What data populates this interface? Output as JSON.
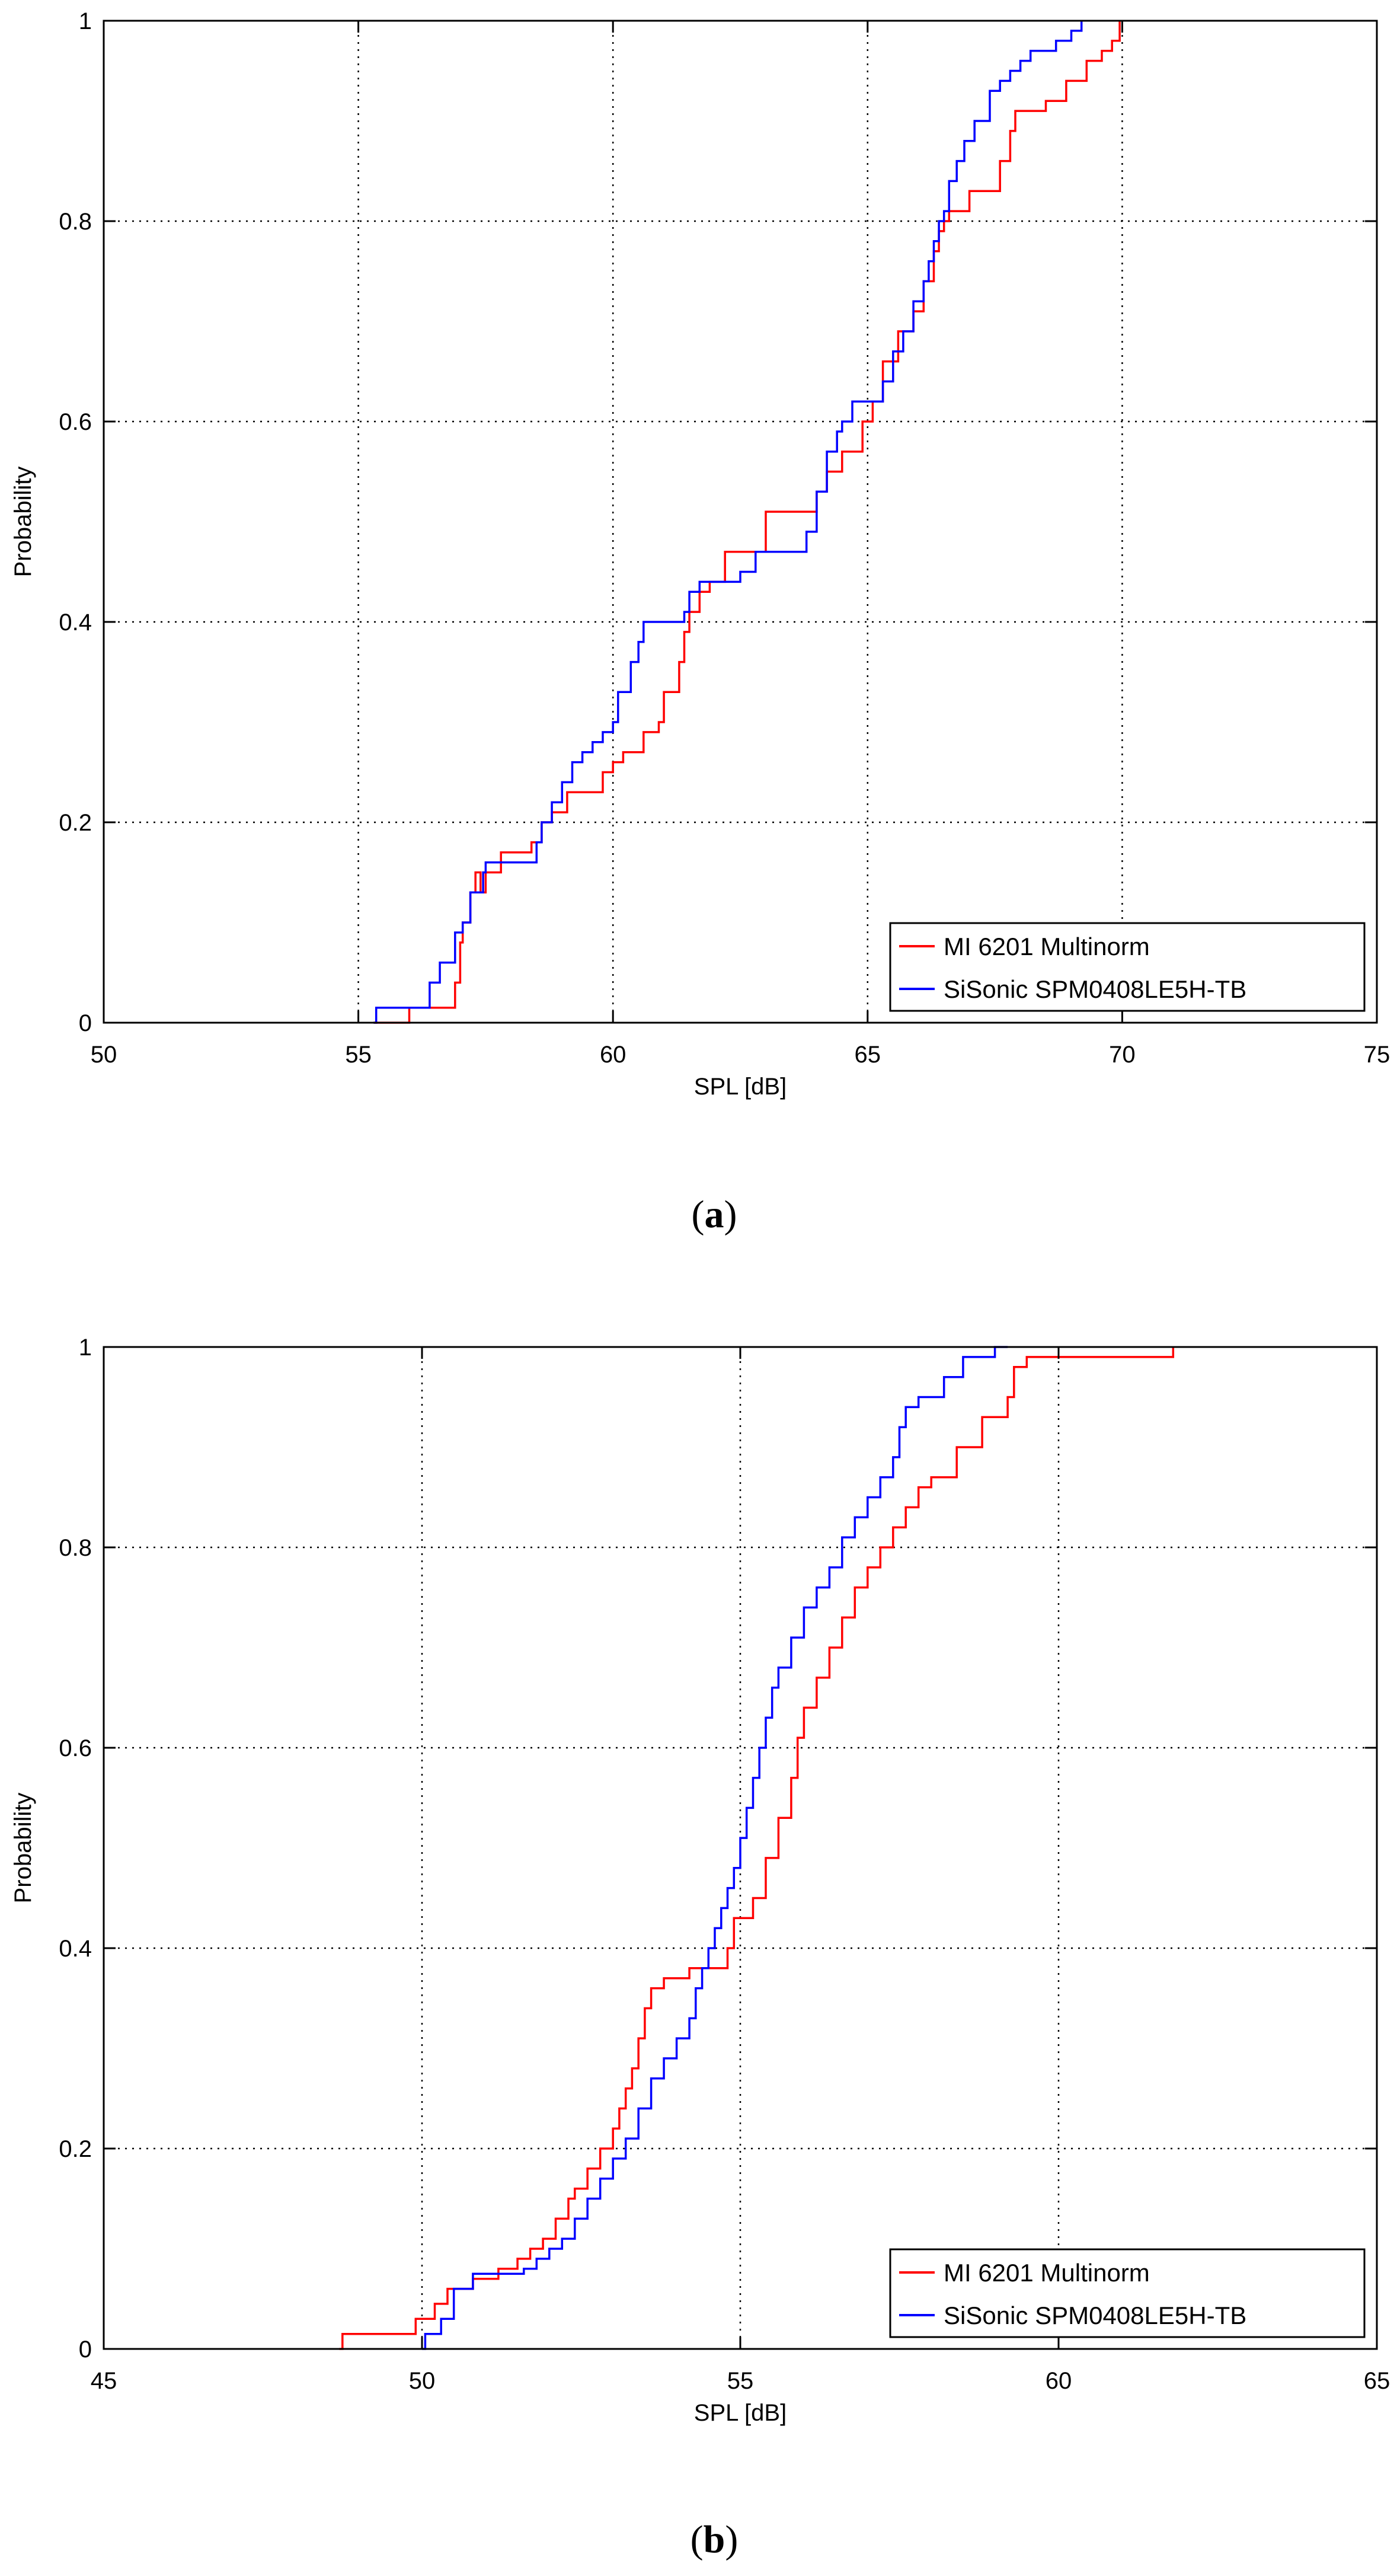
{
  "chart_data": [
    {
      "type": "line",
      "step": true,
      "panel_label": "a",
      "xlabel": "SPL [dB]",
      "ylabel": "Probability",
      "xlim": [
        50,
        75
      ],
      "ylim": [
        0,
        1
      ],
      "xticks": [
        50,
        55,
        60,
        65,
        70,
        75
      ],
      "yticks": [
        0,
        0.2,
        0.4,
        0.6,
        0.8,
        1
      ],
      "grid": true,
      "legend_position": "bottom-right",
      "series": [
        {
          "name": "MI 6201 Multinorm",
          "color": "#ff0000",
          "x": [
            55.3,
            56.0,
            56.0,
            56.9,
            56.9,
            57.0,
            57.05,
            57.2,
            57.25,
            57.3,
            57.4,
            57.5,
            57.6,
            57.8,
            58.0,
            58.4,
            58.6,
            58.7,
            58.8,
            59.1,
            59.6,
            59.8,
            60.0,
            60.2,
            60.6,
            60.9,
            61.0,
            61.3,
            61.4,
            61.5,
            61.7,
            61.9,
            62.2,
            62.5,
            63.0,
            63.8,
            64.0,
            64.2,
            64.5,
            64.9,
            65.1,
            65.3,
            65.6,
            65.9,
            66.1,
            66.3,
            66.4,
            66.5,
            66.6,
            66.8,
            67.0,
            67.3,
            67.6,
            67.8,
            67.9,
            68.0,
            68.5,
            68.9,
            69.3,
            69.6,
            69.8,
            69.95
          ],
          "y": [
            0.0,
            0.0,
            0.015,
            0.015,
            0.04,
            0.08,
            0.1,
            0.13,
            0.13,
            0.15,
            0.13,
            0.15,
            0.15,
            0.17,
            0.17,
            0.18,
            0.2,
            0.2,
            0.21,
            0.23,
            0.23,
            0.25,
            0.26,
            0.27,
            0.29,
            0.3,
            0.33,
            0.36,
            0.39,
            0.41,
            0.43,
            0.44,
            0.47,
            0.47,
            0.51,
            0.51,
            0.53,
            0.55,
            0.57,
            0.6,
            0.62,
            0.66,
            0.69,
            0.71,
            0.74,
            0.77,
            0.79,
            0.8,
            0.81,
            0.81,
            0.83,
            0.83,
            0.86,
            0.89,
            0.91,
            0.91,
            0.92,
            0.94,
            0.96,
            0.97,
            0.98,
            1.0
          ]
        },
        {
          "name": "SiSonic SPM0408LE5H-TB",
          "color": "#0000ff",
          "x": [
            55.3,
            55.35,
            56.35,
            56.4,
            56.6,
            56.9,
            57.05,
            57.2,
            57.35,
            57.45,
            57.5,
            58.3,
            58.5,
            58.6,
            58.8,
            59.0,
            59.2,
            59.4,
            59.6,
            59.8,
            60.0,
            60.1,
            60.35,
            60.5,
            60.6,
            60.7,
            61.2,
            61.4,
            61.5,
            61.7,
            62.2,
            62.5,
            62.8,
            63.5,
            63.8,
            64.0,
            64.2,
            64.4,
            64.5,
            64.6,
            64.7,
            65.1,
            65.3,
            65.5,
            65.7,
            65.9,
            66.1,
            66.2,
            66.3,
            66.4,
            66.5,
            66.6,
            66.75,
            66.9,
            67.1,
            67.4,
            67.6,
            67.8,
            68.0,
            68.2,
            68.7,
            69.0,
            69.2
          ],
          "y": [
            0.0,
            0.015,
            0.015,
            0.04,
            0.06,
            0.09,
            0.1,
            0.13,
            0.13,
            0.15,
            0.16,
            0.16,
            0.18,
            0.2,
            0.22,
            0.24,
            0.26,
            0.27,
            0.28,
            0.29,
            0.3,
            0.33,
            0.36,
            0.38,
            0.4,
            0.4,
            0.4,
            0.41,
            0.43,
            0.44,
            0.44,
            0.45,
            0.47,
            0.47,
            0.49,
            0.53,
            0.57,
            0.59,
            0.6,
            0.6,
            0.62,
            0.62,
            0.64,
            0.67,
            0.69,
            0.72,
            0.74,
            0.76,
            0.78,
            0.8,
            0.81,
            0.84,
            0.86,
            0.88,
            0.9,
            0.93,
            0.94,
            0.95,
            0.96,
            0.97,
            0.98,
            0.99,
            1.0
          ]
        }
      ]
    },
    {
      "type": "line",
      "step": true,
      "panel_label": "b",
      "xlabel": "SPL [dB]",
      "ylabel": "Probability",
      "xlim": [
        45,
        65
      ],
      "ylim": [
        0,
        1
      ],
      "xticks": [
        45,
        50,
        55,
        60,
        65
      ],
      "yticks": [
        0,
        0.2,
        0.4,
        0.6,
        0.8,
        1
      ],
      "grid": true,
      "legend_position": "bottom-right",
      "series": [
        {
          "name": "MI 6201 Multinorm",
          "color": "#ff0000",
          "x": [
            48.7,
            48.75,
            49.8,
            49.9,
            50.2,
            50.4,
            50.8,
            51.2,
            51.5,
            51.7,
            51.9,
            52.1,
            52.3,
            52.4,
            52.6,
            52.8,
            53.0,
            53.1,
            53.2,
            53.3,
            53.4,
            53.5,
            53.6,
            53.8,
            54.2,
            54.6,
            54.8,
            54.9,
            55.2,
            55.4,
            55.6,
            55.8,
            55.9,
            56.0,
            56.2,
            56.4,
            56.6,
            56.8,
            57.0,
            57.2,
            57.4,
            57.6,
            57.8,
            58.0,
            58.4,
            58.8,
            59.2,
            59.3,
            59.5,
            61.8
          ],
          "y": [
            0.0,
            0.015,
            0.015,
            0.03,
            0.045,
            0.06,
            0.07,
            0.08,
            0.09,
            0.1,
            0.11,
            0.13,
            0.15,
            0.16,
            0.18,
            0.2,
            0.22,
            0.24,
            0.26,
            0.28,
            0.31,
            0.34,
            0.36,
            0.37,
            0.38,
            0.38,
            0.4,
            0.43,
            0.45,
            0.49,
            0.53,
            0.57,
            0.61,
            0.64,
            0.67,
            0.7,
            0.73,
            0.76,
            0.78,
            0.8,
            0.82,
            0.84,
            0.86,
            0.87,
            0.9,
            0.93,
            0.95,
            0.98,
            0.99,
            1.0
          ]
        },
        {
          "name": "SiSonic SPM0408LE5H-TB",
          "color": "#0000ff",
          "x": [
            50.0,
            50.05,
            50.3,
            50.5,
            50.8,
            51.3,
            51.6,
            51.8,
            52.0,
            52.2,
            52.4,
            52.6,
            52.8,
            53.0,
            53.2,
            53.4,
            53.6,
            53.8,
            54.0,
            54.2,
            54.3,
            54.4,
            54.5,
            54.6,
            54.7,
            54.8,
            54.9,
            55.0,
            55.1,
            55.2,
            55.3,
            55.4,
            55.5,
            55.6,
            55.8,
            56.0,
            56.2,
            56.4,
            56.6,
            56.8,
            57.0,
            57.2,
            57.4,
            57.5,
            57.6,
            57.8,
            58.2,
            58.5,
            59.0,
            59.2
          ],
          "y": [
            0.0,
            0.015,
            0.03,
            0.06,
            0.075,
            0.075,
            0.08,
            0.09,
            0.1,
            0.11,
            0.13,
            0.15,
            0.17,
            0.19,
            0.21,
            0.24,
            0.27,
            0.29,
            0.31,
            0.33,
            0.36,
            0.38,
            0.4,
            0.42,
            0.44,
            0.46,
            0.48,
            0.51,
            0.54,
            0.57,
            0.6,
            0.63,
            0.66,
            0.68,
            0.71,
            0.74,
            0.76,
            0.78,
            0.81,
            0.83,
            0.85,
            0.87,
            0.89,
            0.92,
            0.94,
            0.95,
            0.97,
            0.99,
            1.0,
            1.0
          ]
        }
      ]
    }
  ]
}
